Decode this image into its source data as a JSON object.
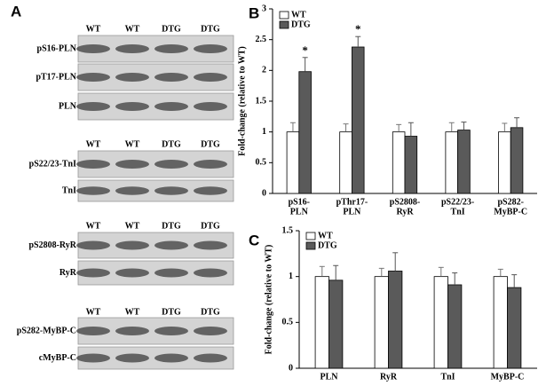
{
  "panel_a": {
    "label": "A",
    "groups": [
      {
        "lanes": [
          "WT",
          "WT",
          "DTG",
          "DTG"
        ],
        "rows": [
          "pS16-PLN",
          "pT17-PLN",
          "PLN"
        ]
      },
      {
        "lanes": [
          "WT",
          "WT",
          "DTG",
          "DTG"
        ],
        "rows": [
          "pS22/23-TnI",
          "TnI"
        ]
      },
      {
        "lanes": [
          "WT",
          "WT",
          "DTG",
          "DTG"
        ],
        "rows": [
          "pS2808-RyR",
          "RyR"
        ]
      },
      {
        "lanes": [
          "WT",
          "WT",
          "DTG",
          "DTG"
        ],
        "rows": [
          "pS282-MyBP-C",
          "cMyBP-C"
        ]
      }
    ]
  },
  "chart_data": [
    {
      "type": "bar",
      "panel_label": "B",
      "y_label": "Fold-change (relative to WT)",
      "categories": [
        [
          "pS16-",
          "PLN"
        ],
        [
          "pThr17-",
          "PLN"
        ],
        [
          "pS2808-",
          "RyR"
        ],
        [
          "pS22/23-",
          "TnI"
        ],
        [
          "pS282-",
          "MyBP-C"
        ]
      ],
      "series": [
        {
          "name": "WT",
          "color": "#ffffff",
          "values": [
            1,
            1,
            1,
            1,
            1
          ],
          "errors": [
            0.15,
            0.13,
            0.12,
            0.15,
            0.14
          ]
        },
        {
          "name": "DTG",
          "color": "#5a5a5a",
          "values": [
            1.98,
            2.38,
            0.93,
            1.03,
            1.07
          ],
          "errors": [
            0.23,
            0.17,
            0.22,
            0.13,
            0.16
          ]
        }
      ],
      "annotations": [
        "*",
        "*"
      ],
      "ylim": [
        0,
        3
      ],
      "yticks": [
        0,
        0.5,
        1,
        1.5,
        2,
        2.5,
        3
      ],
      "legend": "upper-left"
    },
    {
      "type": "bar",
      "panel_label": "C",
      "y_label": "Fold-change (relative to WT)",
      "categories": [
        [
          "PLN"
        ],
        [
          "RyR"
        ],
        [
          "TnI"
        ],
        [
          "MyBP-C"
        ]
      ],
      "series": [
        {
          "name": "WT",
          "color": "#ffffff",
          "values": [
            1,
            1,
            1,
            1
          ],
          "errors": [
            0.11,
            0.09,
            0.1,
            0.08
          ]
        },
        {
          "name": "DTG",
          "color": "#5a5a5a",
          "values": [
            0.96,
            1.06,
            0.91,
            0.88
          ],
          "errors": [
            0.16,
            0.2,
            0.13,
            0.14
          ]
        }
      ],
      "ylim": [
        0,
        1.5
      ],
      "yticks": [
        0,
        0.5,
        1,
        1.5
      ],
      "legend": "upper-left"
    }
  ]
}
